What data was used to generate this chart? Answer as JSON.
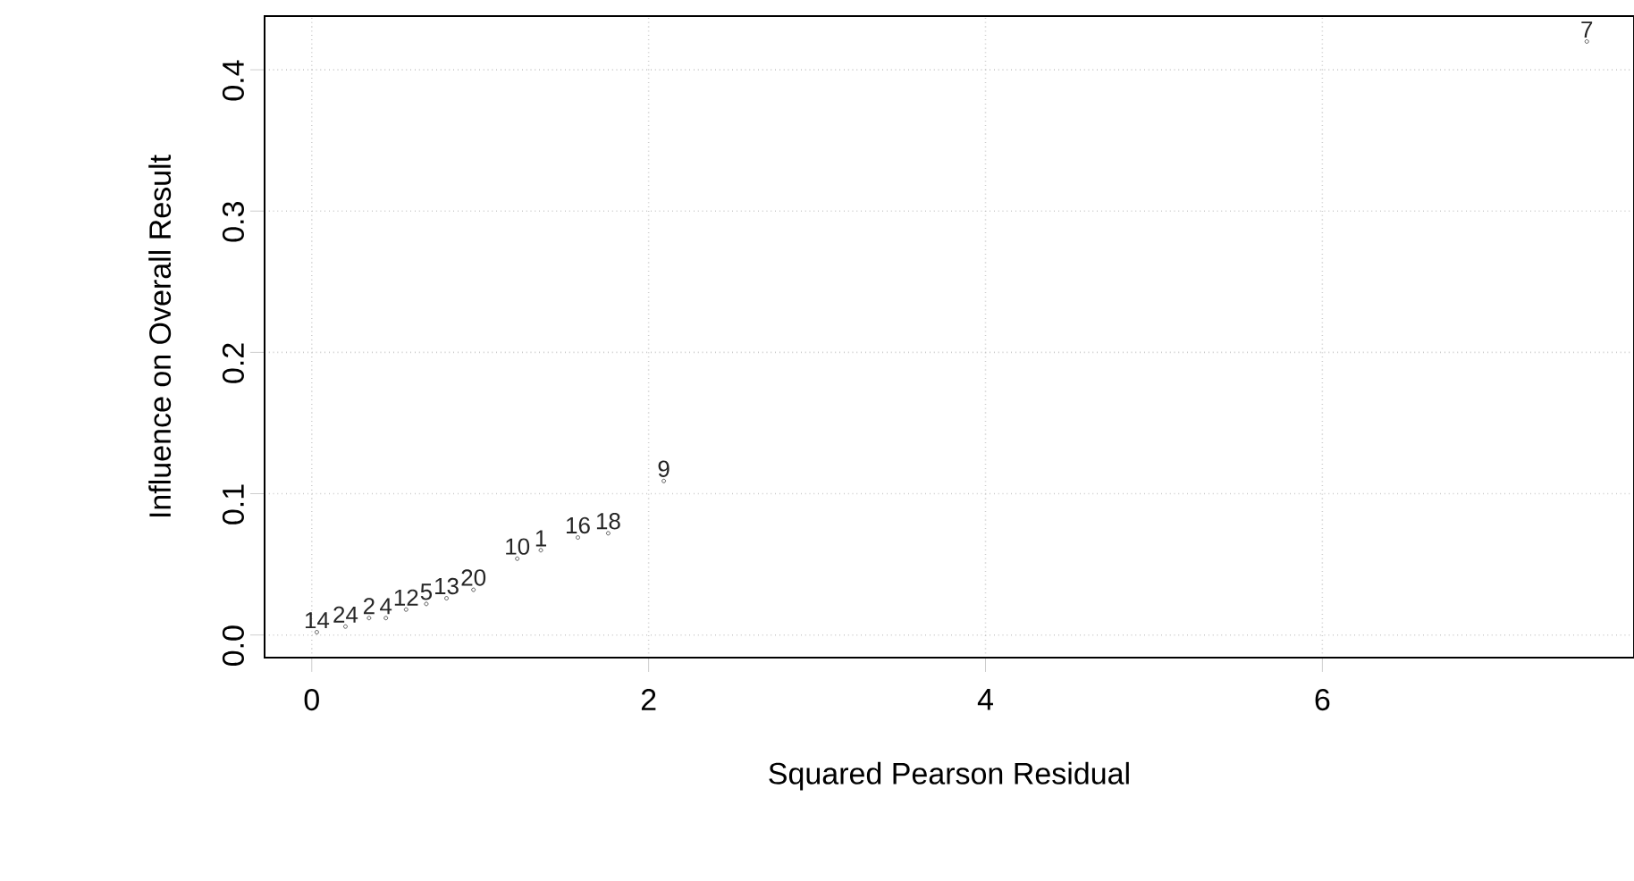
{
  "chart_data": {
    "type": "scatter",
    "xlabel": "Squared Pearson Residual",
    "ylabel": "Influence on Overall Result",
    "xlim": [
      -0.28,
      7.85
    ],
    "ylim": [
      -0.016,
      0.438
    ],
    "xticks": [
      0,
      2,
      4,
      6
    ],
    "yticks": [
      {
        "value": 0,
        "label": "0.0"
      },
      0.1,
      0.2,
      0.3,
      0.4
    ],
    "grid": true,
    "marker": "circle",
    "color": "#333333",
    "x": [
      7.57,
      2.09,
      1.22,
      1.36,
      1.58,
      1.76,
      0.96,
      0.8,
      0.68,
      0.56,
      0.44,
      0.34,
      0.2,
      0.03
    ],
    "values": [
      0.42,
      0.109,
      0.054,
      0.06,
      0.069,
      0.072,
      0.032,
      0.026,
      0.022,
      0.018,
      0.012,
      0.012,
      0.006,
      0.002
    ],
    "annotations": [
      {
        "text": "7",
        "x": 7.57,
        "y": 0.42
      },
      {
        "text": "9",
        "x": 2.09,
        "y": 0.109
      },
      {
        "text": "10",
        "x": 1.22,
        "y": 0.054
      },
      {
        "text": "1",
        "x": 1.36,
        "y": 0.06
      },
      {
        "text": "16",
        "x": 1.58,
        "y": 0.069
      },
      {
        "text": "18",
        "x": 1.76,
        "y": 0.072
      },
      {
        "text": "20",
        "x": 0.96,
        "y": 0.032
      },
      {
        "text": "13",
        "x": 0.8,
        "y": 0.026
      },
      {
        "text": "5",
        "x": 0.68,
        "y": 0.022
      },
      {
        "text": "12",
        "x": 0.56,
        "y": 0.018
      },
      {
        "text": "4",
        "x": 0.44,
        "y": 0.012
      },
      {
        "text": "2",
        "x": 0.34,
        "y": 0.012
      },
      {
        "text": "24",
        "x": 0.2,
        "y": 0.006
      },
      {
        "text": "14",
        "x": 0.03,
        "y": 0.002
      }
    ]
  }
}
